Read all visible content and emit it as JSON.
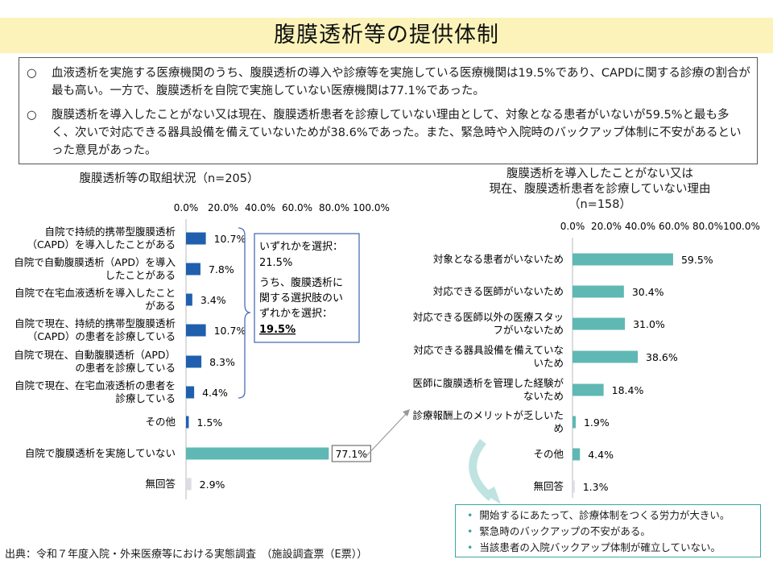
{
  "title": "腹膜透析等の提供体制",
  "summary": [
    {
      "mark": "○",
      "text": "血液透析を実施する医療機関のうち、腹膜透析の導入や診療等を実施している医療機関は19.5%であり、CAPDに関する診療の割合が最も高い。一方で、腹膜透析を自院で実施していない医療機関は77.1%であった。"
    },
    {
      "mark": "○",
      "text": "腹膜透析を導入したことがない又は現在、腹膜透析患者を診療していない理由として、対象となる患者がいないが59.5%と最も多く、次いで対応できる器具設備を備えていないためが38.6%であった。また、緊急時や入院時のバックアップ体制に不安があるといった意見があった。"
    }
  ],
  "left_title": "腹膜透析等の取組状況（n=205）",
  "right_title_lines": [
    "腹膜透析を導入したことがない又は",
    "現在、腹膜透析患者を診療していない理由",
    "（n=158）"
  ],
  "callout": {
    "line1": "いずれかを選択：",
    "line2": "21.5%",
    "line3": "うち、腹膜透析に",
    "line4": "関する選択肢のい",
    "line5": "ずれかを選択：",
    "line6": "19.5%"
  },
  "notes": [
    "開始するにあたって、診療体制をつくる労力が大きい。",
    "緊急時のバックアップの不安がある。",
    "当該患者の入院バックアップ体制が確立していない。"
  ],
  "source": "出典：令和７年度入院・外来医療等における実態調査　（施設調査票（E票））",
  "colors": {
    "left_bar": "#1f5fae",
    "left_highlight": "#5fb8b3",
    "left_noanswer": "#dcdce6",
    "right_bar": "#5fb8b3",
    "right_noanswer": "#dcdce6",
    "callout_border": "#4a6fb5",
    "title_bg": "#fbf3b9"
  },
  "chart_data": [
    {
      "type": "bar",
      "orientation": "horizontal",
      "title": "腹膜透析等の取組状況（n=205）",
      "ticks": [
        "0.0%",
        "20.0%",
        "40.0%",
        "60.0%",
        "80.0%",
        "100.0%"
      ],
      "xlim": [
        0,
        100
      ],
      "categories": [
        [
          "自院で持続的携帯型腹膜透析",
          "（CAPD）を導入したことがある"
        ],
        [
          "自院で自動腹膜透析（APD）を導入",
          "したことがある"
        ],
        [
          "自院で在宅血液透析を導入したこと",
          "がある"
        ],
        [
          "自院で現在、持続的携帯型腹膜透析",
          "（CAPD）の患者を診療している"
        ],
        [
          "自院で現在、自動腹膜透析（APD）",
          "の患者を診療している"
        ],
        [
          "自院で現在、在宅血液透析の患者を",
          "診療している"
        ],
        [
          "その他"
        ],
        [
          "自院で腹膜透析を実施していない"
        ],
        [
          "無回答"
        ]
      ],
      "values": [
        10.7,
        7.8,
        3.4,
        10.7,
        8.3,
        4.4,
        1.5,
        77.1,
        2.9
      ],
      "labels": [
        "10.7%",
        "7.8%",
        "3.4%",
        "10.7%",
        "8.3%",
        "4.4%",
        "1.5%",
        "77.1%",
        "2.9%"
      ]
    },
    {
      "type": "bar",
      "orientation": "horizontal",
      "title": "腹膜透析を導入したことがない又は現在、腹膜透析患者を診療していない理由（n=158）",
      "ticks": [
        "0.0%",
        "20.0%",
        "40.0%",
        "60.0%",
        "80.0%",
        "100.0%"
      ],
      "xlim": [
        0,
        100
      ],
      "categories": [
        [
          "対象となる患者がいないため"
        ],
        [
          "対応できる医師がいないため"
        ],
        [
          "対応できる医師以外の医療スタッ",
          "フがいないため"
        ],
        [
          "対応できる器具設備を備えていな",
          "いため"
        ],
        [
          "医師に腹膜透析を管理した経験が",
          "ないため"
        ],
        [
          "診療報酬上のメリットが乏しいた",
          "め"
        ],
        [
          "その他"
        ],
        [
          "無回答"
        ]
      ],
      "values": [
        59.5,
        30.4,
        31.0,
        38.6,
        18.4,
        1.9,
        4.4,
        1.3
      ],
      "labels": [
        "59.5%",
        "30.4%",
        "31.0%",
        "38.6%",
        "18.4%",
        "1.9%",
        "4.4%",
        "1.3%"
      ]
    }
  ]
}
